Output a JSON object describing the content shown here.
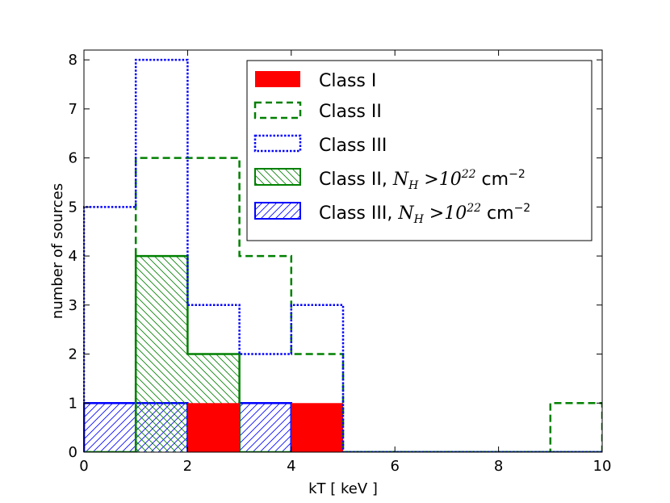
{
  "chart_data": {
    "type": "histogram",
    "xlabel": "kT [ keV ]",
    "ylabel": "number of sources",
    "xlim": [
      0,
      10
    ],
    "ylim": [
      0,
      8.2
    ],
    "xticks": [
      "0",
      "2",
      "4",
      "6",
      "8",
      "10"
    ],
    "yticks": [
      "0",
      "1",
      "2",
      "3",
      "4",
      "5",
      "6",
      "7",
      "8"
    ],
    "bin_edges": [
      0,
      1,
      2,
      3,
      4,
      5,
      6,
      7,
      8,
      9,
      10
    ],
    "grid": false,
    "legend_position": "top-right",
    "series": [
      {
        "name": "Class I",
        "style": "filled",
        "color": "#ff0000",
        "counts": [
          0,
          0,
          1,
          0,
          1,
          0,
          0,
          0,
          0,
          0
        ]
      },
      {
        "name": "Class II",
        "style": "dashed",
        "color": "#008000",
        "counts": [
          0,
          6,
          6,
          4,
          2,
          0,
          0,
          0,
          0,
          1
        ]
      },
      {
        "name": "Class III",
        "style": "dotted",
        "color": "#0000ff",
        "counts": [
          5,
          8,
          3,
          2,
          3,
          0,
          0,
          0,
          0,
          0
        ]
      },
      {
        "name": "Class II, N_H >10^22 cm^-2",
        "style": "hatched-backslash",
        "color": "#008000",
        "counts": [
          0,
          4,
          2,
          0,
          0,
          0,
          0,
          0,
          0,
          0
        ]
      },
      {
        "name": "Class III, N_H >10^22 cm^-2",
        "style": "hatched-slash",
        "color": "#0000ff",
        "counts": [
          1,
          1,
          0,
          1,
          0,
          0,
          0,
          0,
          0,
          0
        ]
      }
    ]
  },
  "legend": {
    "class1": "Class I",
    "class2": "Class II",
    "class3": "Class III",
    "class2_nh_prefix": "Class II, ",
    "class3_nh_prefix": "Class III, ",
    "nh_symbol": "N",
    "nh_subscript": "H",
    "nh_relation": " >10",
    "nh_exponent": "22",
    "nh_unit": " cm",
    "nh_unit_exponent": "−2"
  }
}
